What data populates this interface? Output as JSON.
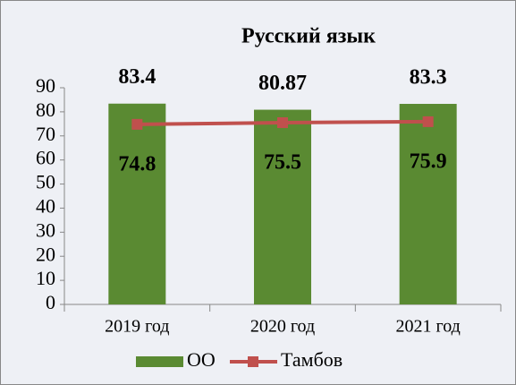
{
  "chart_data": {
    "type": "bar",
    "title": "Русский язык",
    "categories": [
      "2019 год",
      "2020 год",
      "2021 год"
    ],
    "series": [
      {
        "name": "ОО",
        "color": "#5a8a32",
        "values": [
          83.4,
          80.87,
          83.3
        ]
      },
      {
        "name": "Тамбов",
        "color": "#c0504d",
        "type": "line",
        "values": [
          74.8,
          75.5,
          75.9
        ]
      }
    ],
    "ylim": [
      0,
      90
    ],
    "yticks": [
      0,
      10,
      20,
      30,
      40,
      50,
      60,
      70,
      80,
      90
    ],
    "grid": false,
    "legend": "bottom"
  }
}
